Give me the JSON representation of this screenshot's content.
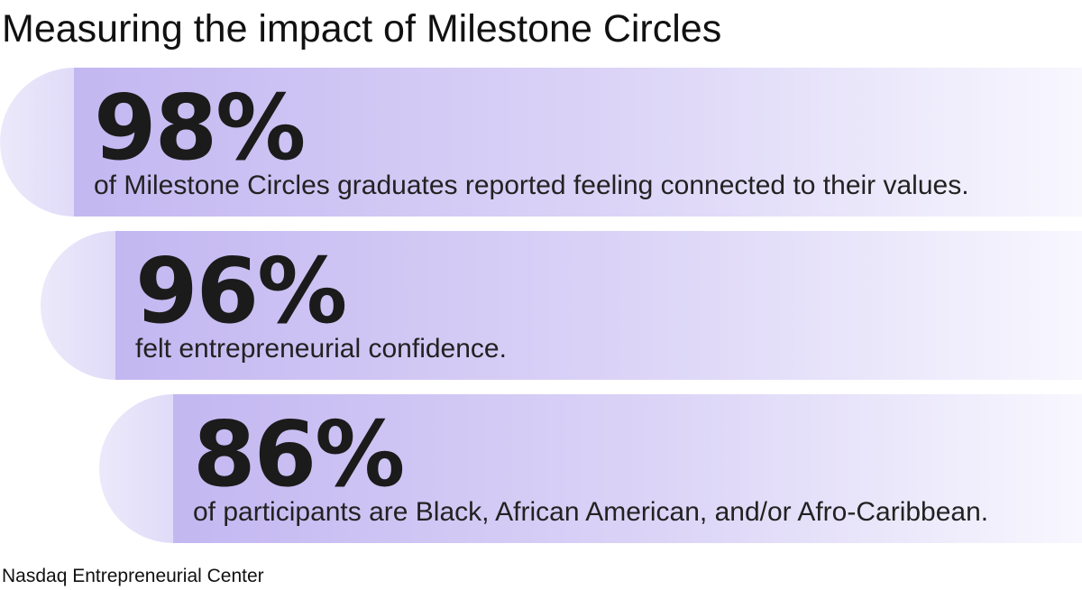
{
  "header": {
    "title": "Measuring the impact of Milestone Circles"
  },
  "stats": [
    {
      "figure": "98%",
      "description": "of Milestone Circles graduates reported feeling connected to their values."
    },
    {
      "figure": "96%",
      "description": "felt entrepreneurial confidence."
    },
    {
      "figure": "86%",
      "description": "of participants are Black, African American, and/or Afro-Caribbean."
    }
  ],
  "footer": {
    "source": "Nasdaq Entrepreneurial Center"
  }
}
